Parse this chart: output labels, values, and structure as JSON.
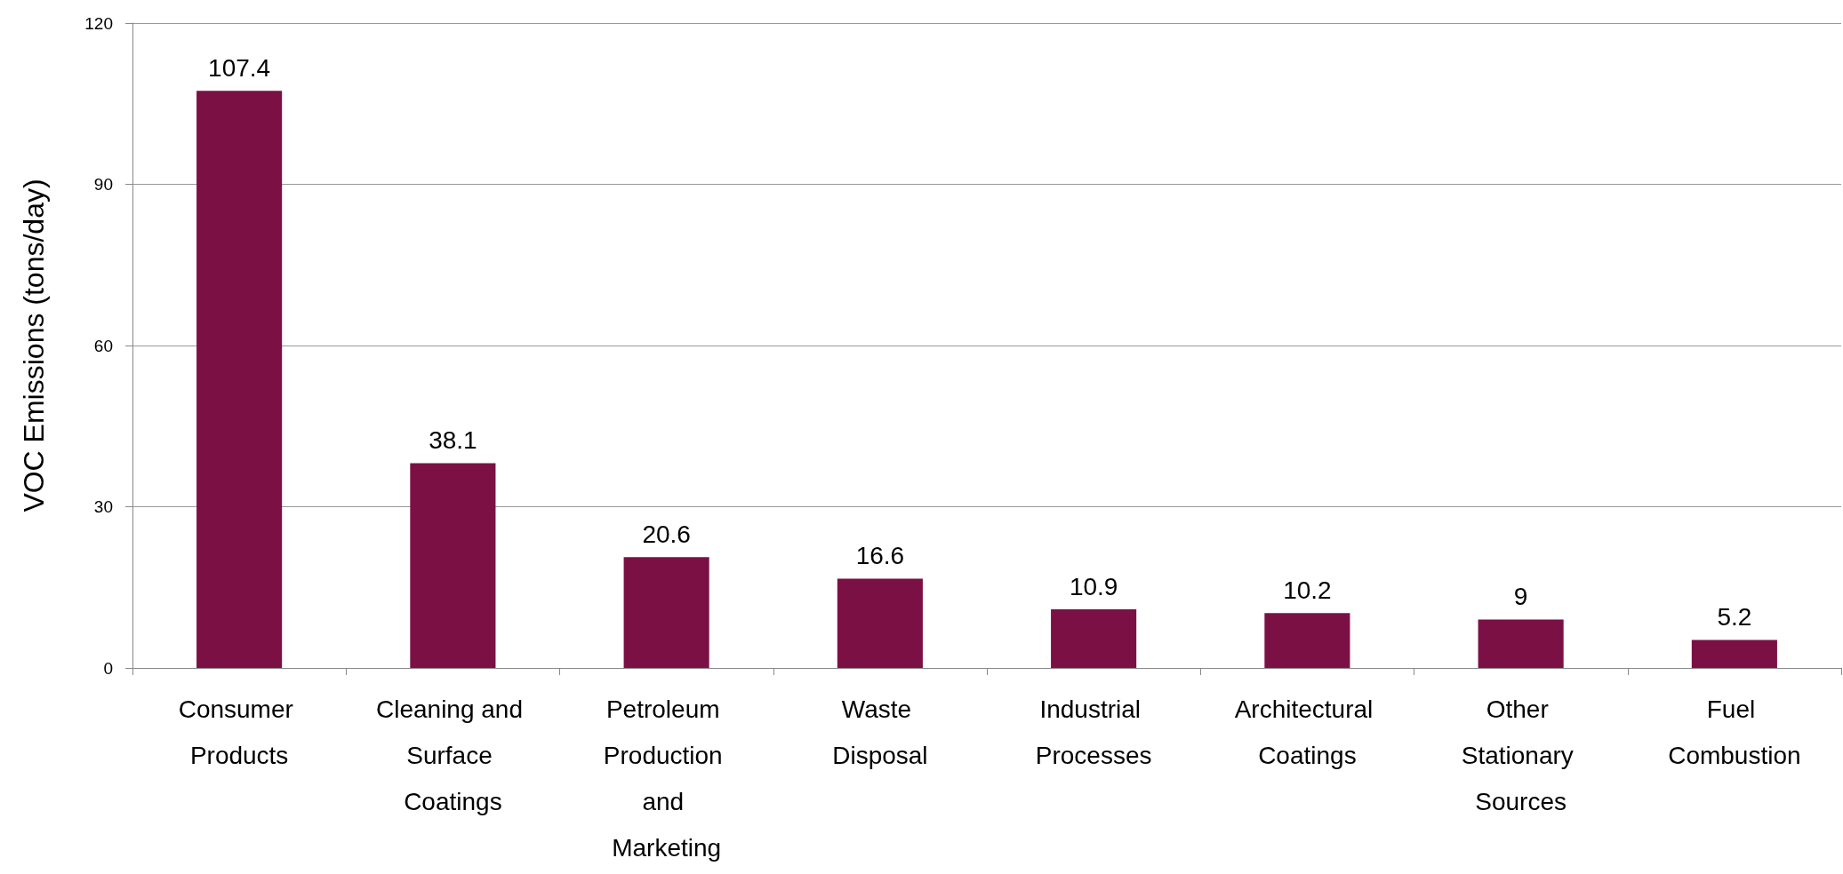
{
  "chart_data": {
    "type": "bar",
    "ylabel": "VOC Emissions (tons/day)",
    "categories": [
      "Consumer Products",
      "Cleaning and Surface Coatings",
      "Petroleum Production and Marketing",
      "Waste Disposal",
      "Industrial Processes",
      "Architectural Coatings",
      "Other Stationary Sources",
      "Fuel Combustion"
    ],
    "values": [
      107.4,
      38.1,
      20.6,
      16.6,
      10.9,
      10.2,
      9,
      5.2
    ],
    "color": "#7b1045",
    "ylim": [
      0,
      120
    ],
    "yticks": [
      0,
      30,
      60,
      90,
      120
    ],
    "grid": "y",
    "data_labels": true
  }
}
